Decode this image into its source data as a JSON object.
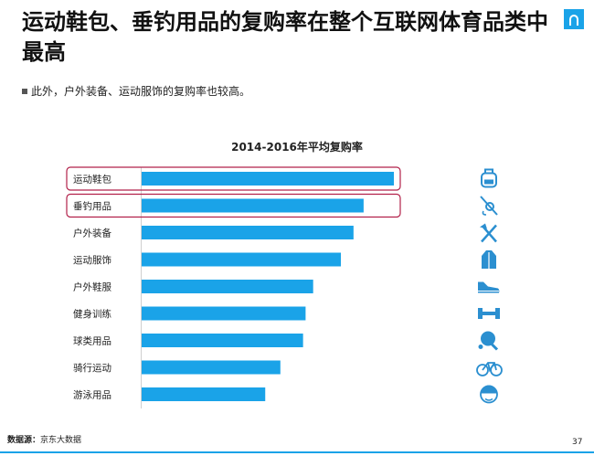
{
  "header": {
    "title": "运动鞋包、垂钓用品的复购率在整个互联网体育品类中最高",
    "subtitle": "此外，户外装备、运动服饰的复购率也较高。"
  },
  "footer": {
    "source_label": "数据源：",
    "source_value": "京东大数据",
    "page_number": "37"
  },
  "colors": {
    "bar": "#1aa3e8",
    "highlight_box": "#b2214a",
    "icon": "#2b8fd0"
  },
  "chart_data": {
    "type": "bar",
    "orientation": "horizontal",
    "title": "2014-2016年平均复购率",
    "categories": [
      "运动鞋包",
      "垂钓用品",
      "户外装备",
      "运动服饰",
      "户外鞋服",
      "健身训练",
      "球类用品",
      "骑行运动",
      "游泳用品"
    ],
    "values": [
      100,
      88,
      84,
      79,
      68,
      65,
      64,
      55,
      49
    ],
    "value_unit": "relative bar length (no axis printed)",
    "xlim": [
      0,
      100
    ],
    "highlighted_categories": [
      "运动鞋包",
      "垂钓用品"
    ],
    "category_icons": [
      "backpack-icon",
      "fishing-icon",
      "mountaineering-icon",
      "apparel-icon",
      "shoe-icon",
      "dumbbell-icon",
      "ping-pong-icon",
      "bicycle-icon",
      "swimmer-icon"
    ],
    "grid": false,
    "legend": "none"
  }
}
